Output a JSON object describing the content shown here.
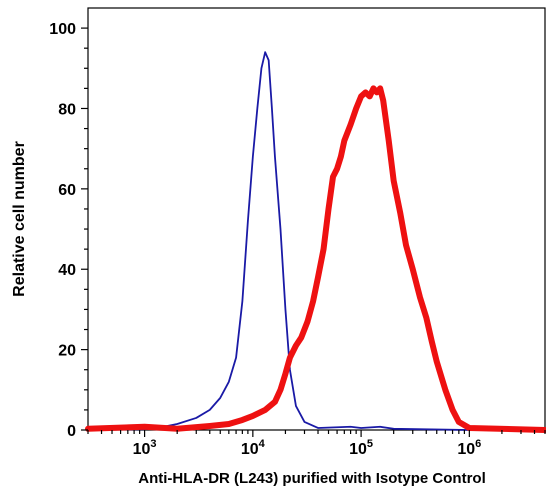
{
  "chart_data": {
    "type": "line",
    "title": "",
    "xlabel": "Anti-HLA-DR (L243) purified with Isotype Control",
    "ylabel": "Relative cell number",
    "x_scale": "log",
    "xlim": [
      300,
      5000000
    ],
    "ylim": [
      0,
      105
    ],
    "x_ticks": [
      {
        "value": 1000,
        "base": "10",
        "exp": "3"
      },
      {
        "value": 10000,
        "base": "10",
        "exp": "4"
      },
      {
        "value": 100000,
        "base": "10",
        "exp": "5"
      },
      {
        "value": 1000000,
        "base": "10",
        "exp": "6"
      }
    ],
    "y_ticks": [
      0,
      20,
      40,
      60,
      80,
      100
    ],
    "series": [
      {
        "color": "#1a1aa6",
        "values": [
          [
            300,
            0
          ],
          [
            1000,
            0.2
          ],
          [
            1500,
            0.8
          ],
          [
            2000,
            1.5
          ],
          [
            3000,
            3
          ],
          [
            4000,
            5
          ],
          [
            5000,
            8
          ],
          [
            6000,
            12
          ],
          [
            7000,
            18
          ],
          [
            8000,
            32
          ],
          [
            9000,
            52
          ],
          [
            10000,
            68
          ],
          [
            11000,
            80
          ],
          [
            12000,
            90
          ],
          [
            13000,
            94
          ],
          [
            14000,
            92
          ],
          [
            15000,
            80
          ],
          [
            16000,
            68
          ],
          [
            18000,
            50
          ],
          [
            20000,
            30
          ],
          [
            22000,
            15
          ],
          [
            25000,
            6
          ],
          [
            30000,
            2
          ],
          [
            40000,
            0.5
          ],
          [
            80000,
            0.8
          ],
          [
            100000,
            0.5
          ],
          [
            150000,
            0.8
          ],
          [
            200000,
            0.3
          ],
          [
            1000000,
            0
          ],
          [
            5000000,
            0
          ]
        ]
      },
      {
        "color": "#ee1111",
        "values": [
          [
            300,
            0.3
          ],
          [
            1000,
            0.8
          ],
          [
            2000,
            0.3
          ],
          [
            4000,
            1
          ],
          [
            6000,
            1.5
          ],
          [
            8000,
            2.5
          ],
          [
            10000,
            3.5
          ],
          [
            13000,
            5
          ],
          [
            16000,
            7
          ],
          [
            18000,
            10
          ],
          [
            20000,
            14
          ],
          [
            22000,
            18
          ],
          [
            25000,
            21
          ],
          [
            28000,
            23
          ],
          [
            32000,
            27
          ],
          [
            36000,
            32
          ],
          [
            40000,
            38
          ],
          [
            45000,
            45
          ],
          [
            50000,
            55
          ],
          [
            55000,
            63
          ],
          [
            60000,
            65
          ],
          [
            65000,
            68
          ],
          [
            70000,
            72
          ],
          [
            80000,
            76
          ],
          [
            90000,
            80
          ],
          [
            100000,
            83
          ],
          [
            110000,
            84
          ],
          [
            120000,
            83
          ],
          [
            130000,
            85
          ],
          [
            140000,
            84
          ],
          [
            150000,
            85
          ],
          [
            160000,
            82
          ],
          [
            180000,
            72
          ],
          [
            200000,
            62
          ],
          [
            230000,
            54
          ],
          [
            260000,
            46
          ],
          [
            300000,
            40
          ],
          [
            350000,
            33
          ],
          [
            400000,
            28
          ],
          [
            450000,
            22
          ],
          [
            500000,
            17
          ],
          [
            600000,
            10
          ],
          [
            700000,
            5
          ],
          [
            800000,
            2
          ],
          [
            1000000,
            0.5
          ],
          [
            5000000,
            0
          ]
        ]
      }
    ]
  }
}
